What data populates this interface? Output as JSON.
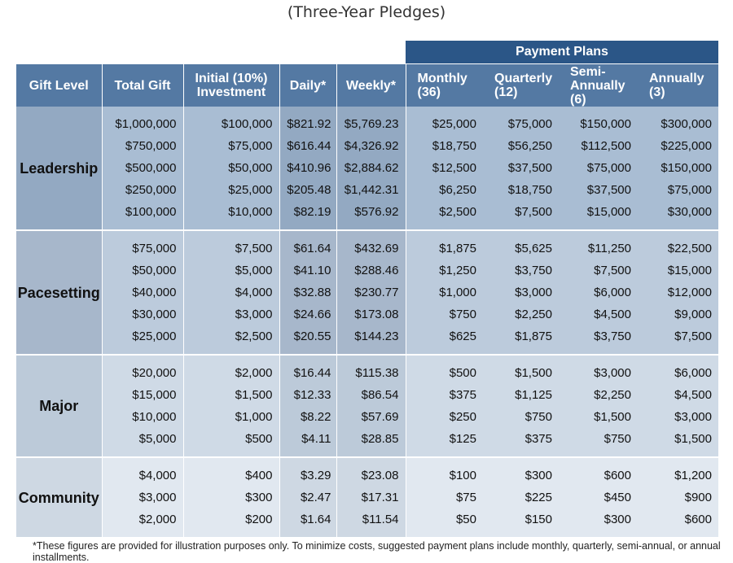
{
  "subtitle": "(Three-Year Pledges)",
  "payment_plans_header": "Payment Plans",
  "columns": {
    "gift_level": "Gift Level",
    "total_gift": "Total Gift",
    "initial_line1": "Initial (10%)",
    "initial_line2": "Investment",
    "daily": "Daily*",
    "weekly": "Weekly*",
    "monthly_line1": "Monthly",
    "monthly_line2": "(36)",
    "quarterly_line1": "Quarterly",
    "quarterly_line2": "(12)",
    "semi_line1": "Semi-Annually",
    "semi_line2": "(6)",
    "annually_line1": "Annually",
    "annually_line2": "(3)"
  },
  "groups": [
    {
      "level": "Leadership",
      "rows": [
        [
          "$1,000,000",
          "$100,000",
          "$821.92",
          "$5,769.23",
          "$25,000",
          "$75,000",
          "$150,000",
          "$300,000"
        ],
        [
          "$750,000",
          "$75,000",
          "$616.44",
          "$4,326.92",
          "$18,750",
          "$56,250",
          "$112,500",
          "$225,000"
        ],
        [
          "$500,000",
          "$50,000",
          "$410.96",
          "$2,884.62",
          "$12,500",
          "$37,500",
          "$75,000",
          "$150,000"
        ],
        [
          "$250,000",
          "$25,000",
          "$205.48",
          "$1,442.31",
          "$6,250",
          "$18,750",
          "$37,500",
          "$75,000"
        ],
        [
          "$100,000",
          "$10,000",
          "$82.19",
          "$576.92",
          "$2,500",
          "$7,500",
          "$15,000",
          "$30,000"
        ]
      ]
    },
    {
      "level": "Pacesetting",
      "rows": [
        [
          "$75,000",
          "$7,500",
          "$61.64",
          "$432.69",
          "$1,875",
          "$5,625",
          "$11,250",
          "$22,500"
        ],
        [
          "$50,000",
          "$5,000",
          "$41.10",
          "$288.46",
          "$1,250",
          "$3,750",
          "$7,500",
          "$15,000"
        ],
        [
          "$40,000",
          "$4,000",
          "$32.88",
          "$230.77",
          "$1,000",
          "$3,000",
          "$6,000",
          "$12,000"
        ],
        [
          "$30,000",
          "$3,000",
          "$24.66",
          "$173.08",
          "$750",
          "$2,250",
          "$4,500",
          "$9,000"
        ],
        [
          "$25,000",
          "$2,500",
          "$20.55",
          "$144.23",
          "$625",
          "$1,875",
          "$3,750",
          "$7,500"
        ]
      ]
    },
    {
      "level": "Major",
      "rows": [
        [
          "$20,000",
          "$2,000",
          "$16.44",
          "$115.38",
          "$500",
          "$1,500",
          "$3,000",
          "$6,000"
        ],
        [
          "$15,000",
          "$1,500",
          "$12.33",
          "$86.54",
          "$375",
          "$1,125",
          "$2,250",
          "$4,500"
        ],
        [
          "$10,000",
          "$1,000",
          "$8.22",
          "$57.69",
          "$250",
          "$750",
          "$1,500",
          "$3,000"
        ],
        [
          "$5,000",
          "$500",
          "$4.11",
          "$28.85",
          "$125",
          "$375",
          "$750",
          "$1,500"
        ]
      ]
    },
    {
      "level": "Community",
      "rows": [
        [
          "$4,000",
          "$400",
          "$3.29",
          "$23.08",
          "$100",
          "$300",
          "$600",
          "$1,200"
        ],
        [
          "$3,000",
          "$300",
          "$2.47",
          "$17.31",
          "$75",
          "$225",
          "$450",
          "$900"
        ],
        [
          "$2,000",
          "$200",
          "$1.64",
          "$11.54",
          "$50",
          "$150",
          "$300",
          "$600"
        ]
      ]
    }
  ],
  "colors": {
    "header": "#5479a3",
    "payment_plans_header": "#2b5687",
    "groups": [
      {
        "light": "#a9bdd3",
        "dark": "#93a9c2"
      },
      {
        "light": "#bccbdc",
        "dark": "#a7b7cb"
      },
      {
        "light": "#cfdae6",
        "dark": "#bccad9"
      },
      {
        "light": "#e1e8f0",
        "dark": "#ced8e3"
      }
    ]
  },
  "footnote": "*These figures are provided for illustration purposes only. To minimize costs, suggested payment plans include monthly, quarterly, semi-annual, or annual installments."
}
